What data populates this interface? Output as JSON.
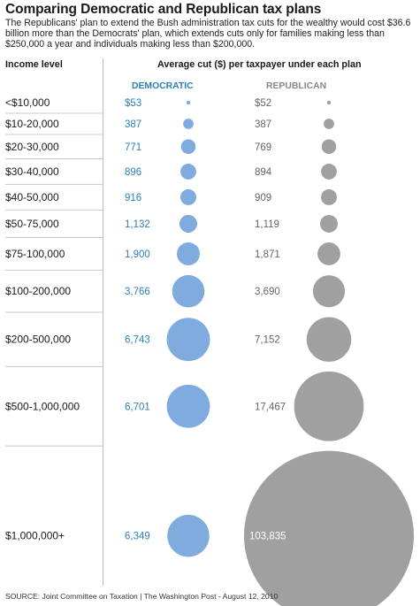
{
  "title": "Comparing Democratic and Republican tax plans",
  "subtitle": "The Republicans' plan to extend the Bush administration tax cuts for the wealthy would cost $36.6 billion more than the Democrats' plan, which extends cuts only for families making less than $250,000 a year and individuals making less than $200,000.",
  "headers": {
    "income": "Income level",
    "average": "Average cut ($) per taxpayer under each plan",
    "democratic": "DEMOCRATIC",
    "republican": "REPUBLICAN"
  },
  "source": "SOURCE: Joint Committee on Taxation | The Washington Post - August 12, 2010",
  "colors": {
    "democratic": "#7fabdf",
    "republican": "#a0a0a0",
    "dem_text": "#2d7fb8"
  },
  "chart_data": {
    "type": "bubble",
    "title": "Comparing Democratic and Republican tax plans",
    "categories": [
      "<$10,000",
      "$10-20,000",
      "$20-30,000",
      "$30-40,000",
      "$40-50,000",
      "$50-75,000",
      "$75-100,000",
      "$100-200,000",
      "$200-500,000",
      "$500-1,000,000",
      "$1,000,000+"
    ],
    "series": [
      {
        "name": "DEMOCRATIC",
        "labels": [
          "$53",
          "387",
          "771",
          "896",
          "916",
          "1,132",
          "1,900",
          "3,766",
          "6,743",
          "6,701",
          "6,349"
        ],
        "values": [
          53,
          387,
          771,
          896,
          916,
          1132,
          1900,
          3766,
          6743,
          6701,
          6349
        ]
      },
      {
        "name": "REPUBLICAN",
        "labels": [
          "$52",
          "387",
          "769",
          "894",
          "909",
          "1,119",
          "1,871",
          "3,690",
          "7,152",
          "17,467",
          "103,835"
        ],
        "values": [
          52,
          387,
          769,
          894,
          909,
          1119,
          1871,
          3690,
          7152,
          17467,
          103835
        ]
      }
    ]
  }
}
